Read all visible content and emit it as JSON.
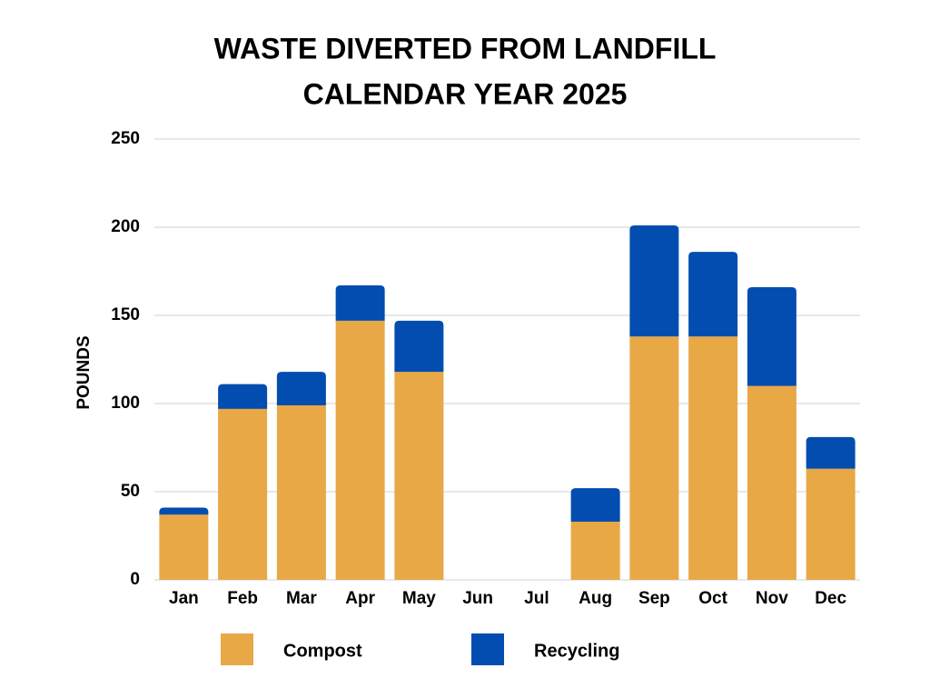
{
  "chart_data": {
    "type": "stacked_bar",
    "title": "WASTE DIVERTED FROM LANDFILL",
    "subtitle": "CALENDAR YEAR 2025",
    "y_label": "POUNDS",
    "categories": [
      "Jan",
      "Feb",
      "Mar",
      "Apr",
      "May",
      "Jun",
      "Jul",
      "Aug",
      "Sep",
      "Oct",
      "Nov",
      "Dec"
    ],
    "series": [
      {
        "name": "Compost",
        "color": "#e8a846",
        "values": [
          37,
          97,
          99,
          147,
          118,
          0,
          0,
          33,
          138,
          138,
          110,
          63
        ]
      },
      {
        "name": "Recycling",
        "color": "#034db0",
        "values": [
          4,
          14,
          19,
          20,
          29,
          0,
          0,
          19,
          63,
          48,
          56,
          18
        ]
      }
    ],
    "ylim": [
      0,
      250
    ],
    "yticks": [
      0,
      50,
      100,
      150,
      200,
      250
    ],
    "grid": true,
    "legend": "bottom"
  }
}
